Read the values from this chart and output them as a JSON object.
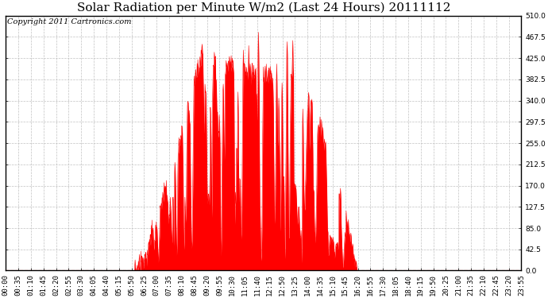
{
  "title": "Solar Radiation per Minute W/m2 (Last 24 Hours) 20111112",
  "copyright": "Copyright 2011 Cartronics.com",
  "y_min": 0.0,
  "y_max": 510.0,
  "y_ticks": [
    0.0,
    42.5,
    85.0,
    127.5,
    170.0,
    212.5,
    255.0,
    297.5,
    340.0,
    382.5,
    425.0,
    467.5,
    510.0
  ],
  "x_labels": [
    "00:00",
    "00:35",
    "01:10",
    "01:45",
    "02:20",
    "02:55",
    "03:30",
    "04:05",
    "04:40",
    "05:15",
    "05:50",
    "06:25",
    "07:00",
    "07:35",
    "08:10",
    "08:45",
    "09:20",
    "09:55",
    "10:30",
    "11:05",
    "11:40",
    "12:15",
    "12:50",
    "13:25",
    "14:00",
    "14:35",
    "15:10",
    "15:45",
    "16:20",
    "16:55",
    "17:30",
    "18:05",
    "18:40",
    "19:15",
    "19:50",
    "20:25",
    "21:00",
    "21:35",
    "22:10",
    "22:45",
    "23:20",
    "23:55"
  ],
  "fill_color": "#FF0000",
  "line_color": "#FF0000",
  "background_color": "#FFFFFF",
  "grid_color": "#BBBBBB",
  "title_fontsize": 11,
  "copyright_fontsize": 7,
  "tick_fontsize": 6.5
}
